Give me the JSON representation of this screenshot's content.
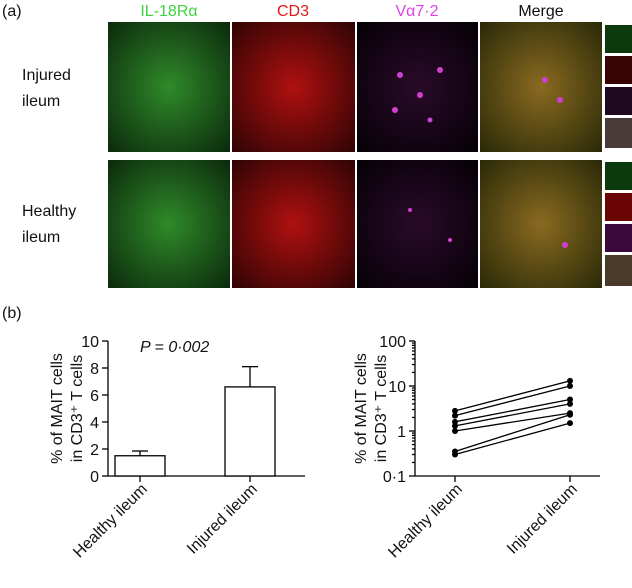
{
  "panel_a": {
    "label": "(a)",
    "columns": [
      "IL-18Rα",
      "CD3",
      "Vα7·2",
      "Merge"
    ],
    "rows": [
      [
        "Injured",
        "ileum"
      ],
      [
        "Healthy",
        "ileum"
      ]
    ]
  },
  "panel_b": {
    "label": "(b)"
  },
  "chart_data": [
    {
      "type": "bar",
      "annotation": "P = 0·002",
      "ylabel": [
        "% of MAIT cells",
        "in CD3⁺ T cells"
      ],
      "categories": [
        "Healthy ileum",
        "Injured ileum"
      ],
      "values": [
        1.5,
        6.6
      ],
      "errors": [
        0.35,
        1.5
      ],
      "color": "#ffffff",
      "ylim": [
        0,
        10
      ],
      "yticks": [
        0,
        2,
        4,
        6,
        8,
        10
      ]
    },
    {
      "type": "line",
      "log_scale": true,
      "ylabel": [
        "% of MAIT cells",
        "in CD3⁺ T cells"
      ],
      "categories": [
        "Healthy ileum",
        "Injured ileum"
      ],
      "color": "#000000",
      "series": [
        {
          "values": [
            2.8,
            13
          ]
        },
        {
          "values": [
            2.2,
            10
          ]
        },
        {
          "values": [
            1.6,
            5
          ]
        },
        {
          "values": [
            1.3,
            4
          ]
        },
        {
          "values": [
            1.0,
            2.5
          ]
        },
        {
          "values": [
            0.35,
            2.3
          ]
        },
        {
          "values": [
            0.3,
            1.5
          ]
        }
      ],
      "ylim": [
        0.1,
        100
      ],
      "yticks": [
        {
          "value": 0.1,
          "label": "0·1"
        },
        1,
        10,
        100
      ]
    }
  ]
}
